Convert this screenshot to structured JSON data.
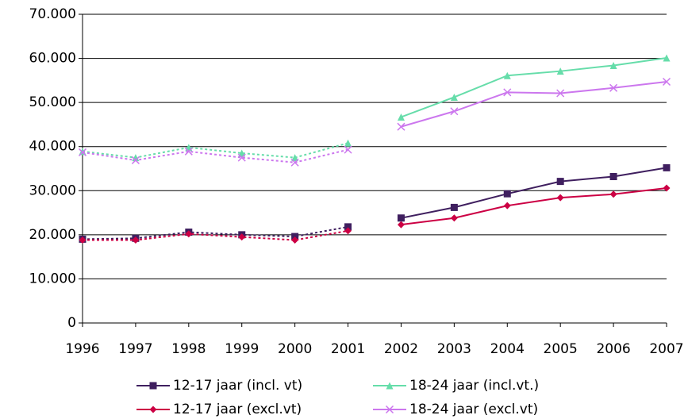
{
  "chart_data": {
    "type": "line",
    "categories": [
      "1996",
      "1997",
      "1998",
      "1999",
      "2000",
      "2001",
      "2002",
      "2003",
      "2004",
      "2005",
      "2006",
      "2007"
    ],
    "series": [
      {
        "name": "12-17 jaar (incl. vt)",
        "color": "#3f1f5f",
        "marker": "square",
        "values": [
          19000,
          19200,
          20600,
          20000,
          19600,
          21800,
          23800,
          26200,
          29300,
          32100,
          33200,
          35200
        ]
      },
      {
        "name": "18-24 jaar (incl.vt.)",
        "color": "#66ddaa",
        "marker": "triangle",
        "values": [
          38900,
          37500,
          39800,
          38500,
          37500,
          40800,
          46700,
          51200,
          56100,
          57100,
          58400,
          60100
        ]
      },
      {
        "name": "12-17 jaar (excl.vt)",
        "color": "#cc0044",
        "marker": "diamond",
        "values": [
          18800,
          18800,
          20200,
          19500,
          18800,
          20900,
          22300,
          23800,
          26600,
          28400,
          29200,
          30600
        ]
      },
      {
        "name": "18-24 jaar (excl.vt)",
        "color": "#cc77ee",
        "marker": "x",
        "values": [
          38700,
          36900,
          38900,
          37500,
          36400,
          39300,
          44500,
          48000,
          52300,
          52100,
          53300,
          54700
        ]
      }
    ],
    "segment_styles": [
      {
        "from": 0,
        "to": 5,
        "style": "dotted"
      },
      {
        "from": 6,
        "to": 11,
        "style": "solid"
      }
    ],
    "ylim": [
      0,
      70000
    ],
    "yticks": [
      0,
      {
        "value": 10000,
        "label": "10.000"
      },
      {
        "value": 20000,
        "label": "20.000"
      },
      {
        "value": 30000,
        "label": "30.000"
      },
      {
        "value": 40000,
        "label": "40.000"
      },
      {
        "value": 50000,
        "label": "50.000"
      },
      {
        "value": 60000,
        "label": "60.000"
      },
      {
        "value": 70000,
        "label": "70.000"
      }
    ],
    "grid": true,
    "legend": "bottom"
  }
}
